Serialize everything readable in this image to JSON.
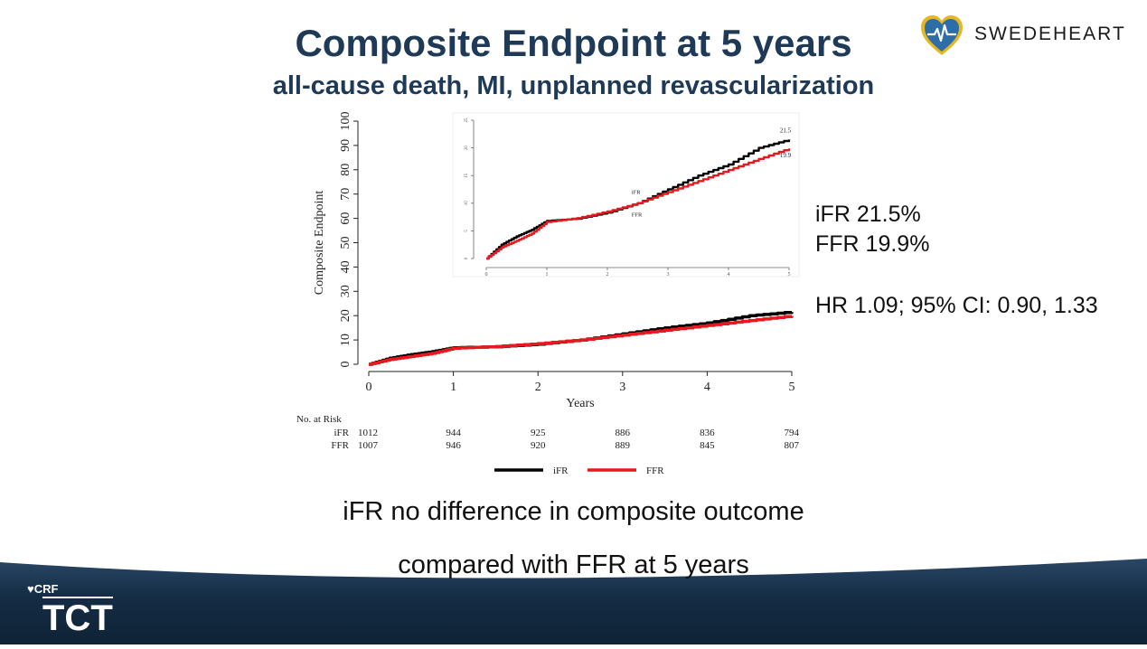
{
  "slide": {
    "title": "Composite Endpoint at 5 years",
    "subtitle": "all-cause death, MI, unplanned revascularization",
    "logo_text": "SWEDEHEART",
    "ifr_rate": "iFR 21.5%",
    "ffr_rate": "FFR 19.9%",
    "hr_text": "HR 1.09; 95% CI: 0.90, 1.33",
    "conclusion_line1": "iFR no difference in composite outcome",
    "conclusion_line2": "compared with FFR at 5 years",
    "footer_crf": "CRF",
    "footer_tct": "TCT"
  },
  "colors": {
    "title": "#1f3a56",
    "ifr": "#000000",
    "ffr": "#e8191e",
    "footer_dark": "#0f2336",
    "footer_light": "#2a4766",
    "logo_heart": "#2d6ea8",
    "logo_heart_border": "#e5b823"
  },
  "icons": {
    "logo": "heart-pulse-icon"
  },
  "chart_data": [
    {
      "type": "line",
      "title": "",
      "xlabel": "Years",
      "ylabel": "Composite Endpoint",
      "xlim": [
        0,
        5
      ],
      "ylim": [
        0,
        100
      ],
      "x_ticks": [
        "0",
        "1",
        "2",
        "3",
        "4",
        "5"
      ],
      "y_ticks": [
        "0",
        "10",
        "20",
        "30",
        "40",
        "50",
        "60",
        "70",
        "80",
        "90",
        "100"
      ],
      "legend": {
        "position": "bottom",
        "labels": [
          "iFR",
          "FFR"
        ]
      },
      "series": [
        {
          "name": "iFR",
          "x": [
            0,
            0.25,
            0.5,
            0.75,
            1.0,
            1.5,
            2.0,
            2.5,
            3.0,
            3.5,
            4.0,
            4.5,
            5.0
          ],
          "y": [
            0,
            2.5,
            4.0,
            5.2,
            6.8,
            7.2,
            8.3,
            10.0,
            12.5,
            15.0,
            17.0,
            20.0,
            21.5
          ]
        },
        {
          "name": "FFR",
          "x": [
            0,
            0.25,
            0.5,
            0.75,
            1.0,
            1.5,
            2.0,
            2.5,
            3.0,
            3.5,
            4.0,
            4.5,
            5.0
          ],
          "y": [
            0,
            2.0,
            3.2,
            4.5,
            6.6,
            7.3,
            8.5,
            10.0,
            12.0,
            14.0,
            16.0,
            18.0,
            19.9
          ]
        }
      ],
      "risk_table": {
        "title": "No. at Risk",
        "rows": [
          {
            "label": "iFR",
            "values": [
              "1012",
              "944",
              "925",
              "886",
              "836",
              "794"
            ]
          },
          {
            "label": "FFR",
            "values": [
              "1007",
              "946",
              "920",
              "889",
              "845",
              "807"
            ]
          }
        ]
      }
    },
    {
      "type": "line",
      "title": "",
      "xlim": [
        0,
        5
      ],
      "ylim": [
        0,
        25
      ],
      "x_ticks": [
        "0",
        "1",
        "2",
        "3",
        "4",
        "5"
      ],
      "y_ticks": [
        "0",
        "5",
        "10",
        "15",
        "20",
        "25"
      ],
      "series": [
        {
          "name": "iFR",
          "end_label": "21.5",
          "x": [
            0,
            0.25,
            0.5,
            0.75,
            1.0,
            1.5,
            2.0,
            2.5,
            3.0,
            3.5,
            4.0,
            4.5,
            5.0
          ],
          "y": [
            0,
            2.5,
            4.0,
            5.2,
            6.8,
            7.2,
            8.3,
            10.0,
            12.5,
            15.0,
            17.0,
            20.0,
            21.5
          ]
        },
        {
          "name": "FFR",
          "end_label": "19.9",
          "x": [
            0,
            0.25,
            0.5,
            0.75,
            1.0,
            1.5,
            2.0,
            2.5,
            3.0,
            3.5,
            4.0,
            4.5,
            5.0
          ],
          "y": [
            0,
            2.0,
            3.2,
            4.5,
            6.6,
            7.3,
            8.5,
            10.0,
            12.0,
            14.0,
            16.0,
            18.0,
            19.9
          ]
        }
      ]
    }
  ]
}
